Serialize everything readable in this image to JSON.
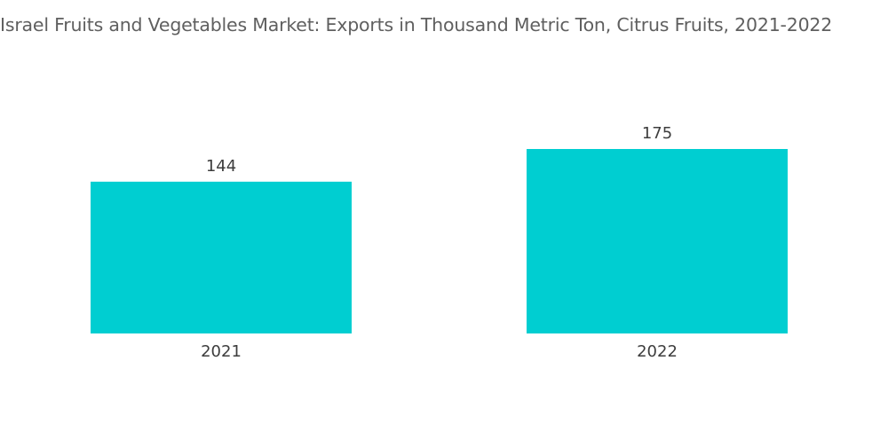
{
  "chart_data": {
    "type": "bar",
    "title": "Israel Fruits and Vegetables Market: Exports in Thousand Metric Ton, Citrus Fruits, 2021-2022",
    "categories": [
      "2021",
      "2022"
    ],
    "values": [
      144,
      175
    ],
    "data_labels": [
      "144",
      "175"
    ],
    "xlabel": "",
    "ylabel": "",
    "ylim": [
      0,
      175
    ],
    "grid": false,
    "legend": "none",
    "colors": {
      "bar": "#00ced1"
    }
  }
}
